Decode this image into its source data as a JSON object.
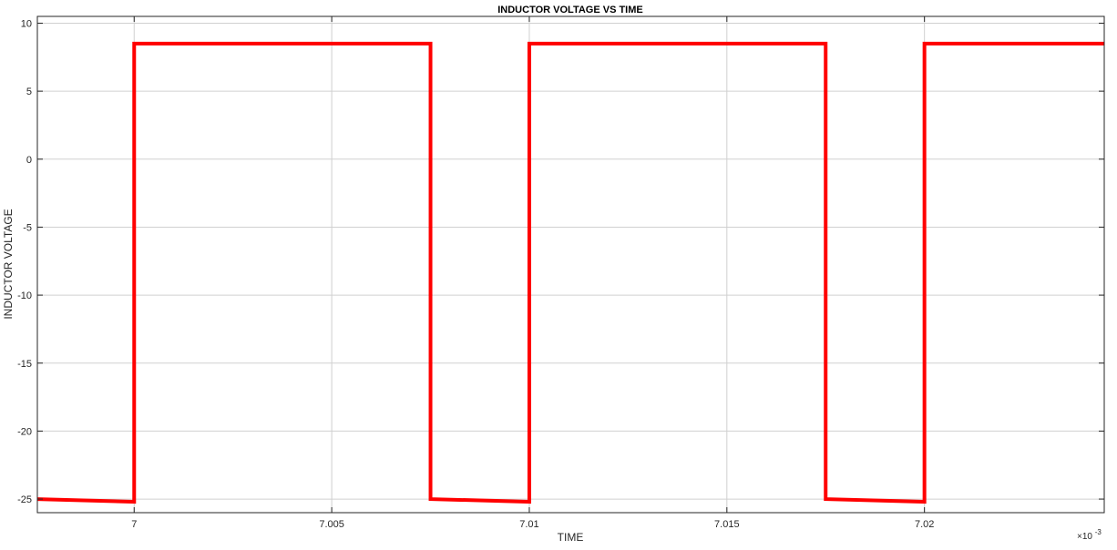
{
  "chart_data": {
    "type": "line",
    "title": "INDUCTOR VOLTAGE VS TIME",
    "xlabel": "TIME",
    "ylabel": "INDUCTOR VOLTAGE",
    "x_exponent_base": "×10",
    "x_exponent_power": "-3",
    "xlim": [
      6.99755,
      7.02455
    ],
    "ylim": [
      -26,
      10.5
    ],
    "grid": true,
    "line_color": "#ff0000",
    "grid_color": "#d0d0d0",
    "axis_color": "#262626",
    "x_ticks": [
      {
        "value": 7.0,
        "label": "7"
      },
      {
        "value": 7.005,
        "label": "7.005"
      },
      {
        "value": 7.01,
        "label": "7.01"
      },
      {
        "value": 7.015,
        "label": "7.015"
      },
      {
        "value": 7.02,
        "label": "7.02"
      }
    ],
    "y_ticks": [
      {
        "value": 10,
        "label": "10"
      },
      {
        "value": 5,
        "label": "5"
      },
      {
        "value": 0,
        "label": "0"
      },
      {
        "value": -5,
        "label": "-5"
      },
      {
        "value": -10,
        "label": "-10"
      },
      {
        "value": -15,
        "label": "-15"
      },
      {
        "value": -20,
        "label": "-20"
      },
      {
        "value": -25,
        "label": "-25"
      }
    ],
    "series": [
      {
        "x": [
          6.99755,
          7.0,
          7.0,
          7.0075,
          7.0075,
          7.01,
          7.01,
          7.0175,
          7.0175,
          7.02,
          7.02,
          7.02455
        ],
        "y": [
          -25.0,
          -25.2,
          8.5,
          8.5,
          -25.0,
          -25.2,
          8.5,
          8.5,
          -25.0,
          -25.2,
          8.5,
          8.5
        ]
      }
    ]
  }
}
